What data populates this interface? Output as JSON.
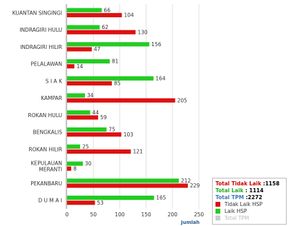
{
  "chart_data": {
    "type": "bar",
    "orientation": "horizontal",
    "categories": [
      "KUANTAN SINGINGI",
      "INDRAGIRI HULU",
      "INDRAGIRI HILIR",
      "PELALAWAN",
      "S I A K",
      "KAMPAR",
      "ROKAN HULU",
      "BENGKALIS",
      "ROKAN HILIR",
      "KEPULAUAN\nMERANTI",
      "PEKANBARU",
      "D U M A I"
    ],
    "series": [
      {
        "name": "Laik HSP",
        "color": "#22cc22",
        "values": [
          66,
          62,
          156,
          81,
          164,
          34,
          44,
          75,
          25,
          30,
          212,
          165
        ]
      },
      {
        "name": "Tidak Laik HSP",
        "color": "#dd1111",
        "values": [
          104,
          130,
          47,
          14,
          85,
          205,
          59,
          103,
          121,
          8,
          229,
          53
        ]
      }
    ],
    "xlim": [
      0,
      250
    ],
    "xticks": [
      0,
      50,
      100,
      150,
      200,
      250
    ],
    "xlabel": "Jumlah",
    "grid": true,
    "legend_position": "bottom-right"
  },
  "totals": {
    "tidak_laik_label": "Total Tidak Laik",
    "tidak_laik_value": ":1158",
    "laik_label": "Total Laik",
    "laik_value": ": 1114",
    "tpm_label": "Total TPM",
    "tpm_value": ":2272",
    "tidak_laik_color": "#cc0000",
    "laik_color": "#22aa22",
    "tpm_color": "#3a7ab8"
  },
  "legend": [
    {
      "label": "Tidak Laik HSP",
      "color": "#dd1111"
    },
    {
      "label": "Laik HSP",
      "color": "#22cc22"
    },
    {
      "label": "Total TPM",
      "color": "#cccccc"
    }
  ]
}
